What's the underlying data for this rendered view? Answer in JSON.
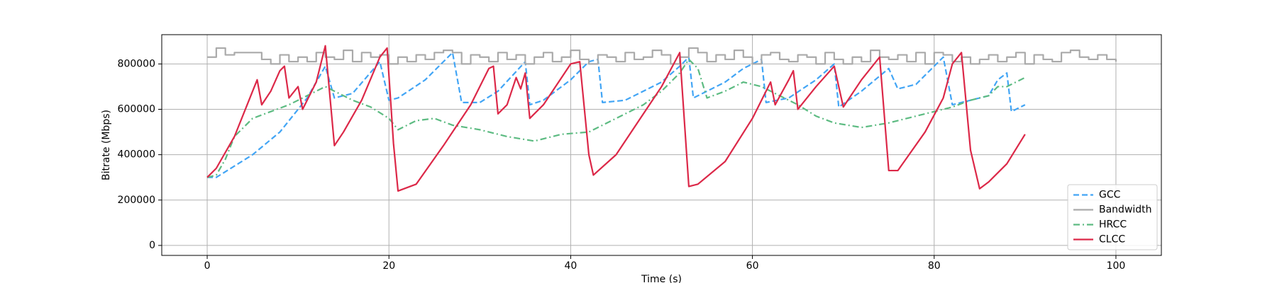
{
  "chart_data": {
    "type": "line",
    "xlabel": "Time (s)",
    "ylabel": "Bitrate (Mbps)",
    "xlim": [
      -5,
      105
    ],
    "ylim": [
      -44000,
      929000
    ],
    "xticks": [
      0,
      20,
      40,
      60,
      80,
      100
    ],
    "yticks": [
      0,
      200000,
      400000,
      600000,
      800000
    ],
    "grid": true,
    "legend": "lower right",
    "series": [
      {
        "name": "GCC",
        "color": "#42a5f5",
        "linestyle": "dashed",
        "x": [
          0,
          1,
          3,
          5,
          8,
          11,
          13,
          14,
          16,
          19,
          20,
          21,
          24,
          27,
          28,
          30,
          32,
          35,
          35.5,
          37,
          40,
          42,
          43,
          43.5,
          46,
          50,
          52,
          53,
          53.5,
          55,
          57,
          59,
          61,
          61.5,
          64,
          67,
          69,
          69.5,
          72,
          75,
          76,
          78,
          81,
          82,
          84,
          86,
          87,
          88,
          88.5,
          90
        ],
        "values": [
          300000,
          300000,
          350000,
          400000,
          500000,
          650000,
          790000,
          650000,
          670000,
          810000,
          640000,
          650000,
          730000,
          850000,
          630000,
          630000,
          680000,
          810000,
          620000,
          640000,
          730000,
          810000,
          820000,
          630000,
          640000,
          720000,
          790000,
          830000,
          650000,
          680000,
          720000,
          780000,
          820000,
          630000,
          650000,
          730000,
          800000,
          610000,
          680000,
          780000,
          690000,
          710000,
          830000,
          620000,
          640000,
          660000,
          730000,
          760000,
          590000,
          620000
        ]
      },
      {
        "name": "Bandwidth",
        "color": "#aaaaaa",
        "linestyle": "solid",
        "drawstyle": "steps-post",
        "x": [
          0,
          1,
          2,
          3,
          4,
          5,
          6,
          7,
          8,
          9,
          10,
          11,
          12,
          13,
          14,
          15,
          16,
          17,
          18,
          19,
          20,
          21,
          22,
          23,
          24,
          25,
          26,
          27,
          28,
          29,
          30,
          31,
          32,
          33,
          34,
          35,
          36,
          37,
          38,
          39,
          40,
          41,
          42,
          43,
          44,
          45,
          46,
          47,
          48,
          49,
          50,
          51,
          52,
          53,
          54,
          55,
          56,
          57,
          58,
          59,
          60,
          61,
          62,
          63,
          64,
          65,
          66,
          67,
          68,
          69,
          70,
          71,
          72,
          73,
          74,
          75,
          76,
          77,
          78,
          79,
          80,
          81,
          82,
          83,
          84,
          85,
          86,
          87,
          88,
          89,
          90,
          91,
          92,
          93,
          94,
          95,
          96,
          97,
          98,
          99,
          100
        ],
        "values": [
          830000,
          870000,
          840000,
          850000,
          850000,
          850000,
          820000,
          800000,
          840000,
          810000,
          830000,
          810000,
          850000,
          830000,
          820000,
          860000,
          810000,
          850000,
          830000,
          840000,
          800000,
          830000,
          810000,
          840000,
          820000,
          850000,
          860000,
          850000,
          800000,
          840000,
          830000,
          810000,
          850000,
          820000,
          840000,
          800000,
          830000,
          850000,
          810000,
          830000,
          860000,
          820000,
          800000,
          840000,
          830000,
          810000,
          850000,
          820000,
          830000,
          860000,
          840000,
          800000,
          830000,
          870000,
          850000,
          810000,
          840000,
          820000,
          860000,
          830000,
          800000,
          840000,
          850000,
          820000,
          810000,
          840000,
          830000,
          800000,
          850000,
          820000,
          800000,
          830000,
          810000,
          860000,
          830000,
          820000,
          840000,
          810000,
          850000,
          800000,
          850000,
          840000,
          810000,
          830000,
          800000,
          820000,
          840000,
          810000,
          830000,
          850000,
          800000,
          840000,
          820000,
          810000,
          850000,
          860000,
          830000,
          820000,
          840000,
          820000,
          810000
        ]
      },
      {
        "name": "HRCC",
        "color": "#5dbb82",
        "linestyle": "dashdot",
        "x": [
          0,
          1,
          2,
          3,
          5,
          7,
          9,
          11,
          13,
          14,
          16,
          18,
          20,
          21,
          23,
          25,
          27,
          30,
          33,
          36,
          39,
          42,
          45,
          48,
          50,
          52,
          53,
          54,
          55,
          57,
          59,
          61,
          63,
          65,
          67,
          69,
          72,
          75,
          78,
          80,
          82,
          84,
          86,
          87,
          88,
          89,
          90
        ],
        "values": [
          300000,
          310000,
          380000,
          480000,
          560000,
          590000,
          620000,
          660000,
          700000,
          680000,
          640000,
          610000,
          560000,
          510000,
          550000,
          560000,
          530000,
          510000,
          480000,
          460000,
          490000,
          500000,
          560000,
          620000,
          680000,
          760000,
          820000,
          780000,
          650000,
          680000,
          720000,
          700000,
          660000,
          620000,
          570000,
          540000,
          520000,
          540000,
          570000,
          590000,
          610000,
          640000,
          660000,
          700000,
          700000,
          720000,
          740000
        ]
      },
      {
        "name": "CLCC",
        "color": "#dc2848",
        "linestyle": "solid",
        "x": [
          0,
          1,
          3,
          5,
          5.5,
          6,
          7,
          8,
          8.5,
          9,
          10,
          10.5,
          12,
          13,
          14,
          15,
          17,
          19,
          19.8,
          20.5,
          21,
          23,
          26,
          29,
          31,
          31.5,
          32,
          33,
          34,
          34.5,
          35,
          35.5,
          37,
          39,
          40,
          41,
          42,
          42.5,
          45,
          48,
          50,
          52,
          53,
          54,
          57,
          60,
          62,
          62.5,
          64,
          64.5,
          65,
          67,
          69,
          70,
          72,
          74,
          75,
          76,
          79,
          81,
          82,
          83,
          84,
          85,
          86,
          88,
          90
        ],
        "values": [
          300000,
          340000,
          480000,
          680000,
          730000,
          620000,
          680000,
          770000,
          790000,
          650000,
          700000,
          600000,
          720000,
          880000,
          440000,
          500000,
          640000,
          830000,
          870000,
          450000,
          240000,
          270000,
          440000,
          620000,
          780000,
          790000,
          580000,
          620000,
          740000,
          690000,
          760000,
          560000,
          620000,
          740000,
          800000,
          810000,
          400000,
          310000,
          400000,
          580000,
          700000,
          850000,
          260000,
          270000,
          370000,
          560000,
          720000,
          620000,
          730000,
          770000,
          600000,
          700000,
          790000,
          610000,
          730000,
          830000,
          330000,
          330000,
          500000,
          650000,
          800000,
          850000,
          420000,
          250000,
          280000,
          360000,
          490000
        ]
      }
    ]
  }
}
